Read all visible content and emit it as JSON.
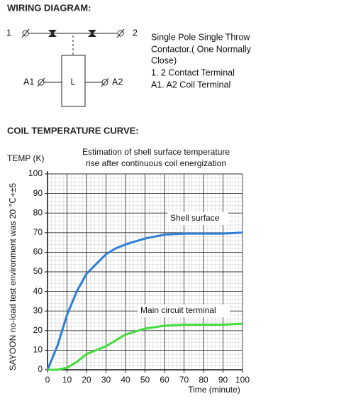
{
  "wiring": {
    "heading": "WIRING DIAGRAM:",
    "terminals": [
      "1",
      "2",
      "A1",
      "A2"
    ],
    "coil": "L",
    "description": [
      "Single Pole Single Throw",
      "Contactor.( One Normally",
      "Close)",
      "1. 2 Contact Terminal",
      "A1. A2 Coil Terminal"
    ]
  },
  "curve_heading": "COIL TEMPERATURE CURVE:",
  "chart_data": {
    "type": "line",
    "title": [
      "Estimation of shell surface temperature",
      "rise after continuous coil energization"
    ],
    "y_label": "TEMP (K)",
    "x_label": "Time (minute)",
    "side_note": "SAYOON no-load test environment was 20 ℃+±5",
    "x": [
      0,
      5,
      10,
      15,
      20,
      25,
      30,
      35,
      40,
      50,
      60,
      70,
      80,
      90,
      100
    ],
    "series": [
      {
        "name": "Shell surface",
        "color": "#2d7ed8",
        "values": [
          0,
          12,
          28,
          40,
          49,
          54,
          59,
          62,
          64,
          67,
          69,
          69.5,
          69.5,
          69.5,
          70
        ]
      },
      {
        "name": "Main circuit terminal",
        "color": "#40dd3c",
        "values": [
          0,
          0,
          1,
          4,
          8,
          10,
          12,
          15,
          18,
          21,
          22.5,
          23,
          23,
          23,
          23.5
        ]
      }
    ],
    "xlim": [
      0,
      100
    ],
    "xticks": [
      0,
      10,
      20,
      30,
      40,
      50,
      60,
      70,
      80,
      90,
      100
    ],
    "ylim": [
      0,
      100
    ],
    "yticks": [
      0,
      10,
      20,
      30,
      40,
      50,
      60,
      70,
      80,
      90,
      100
    ],
    "grid": true
  }
}
